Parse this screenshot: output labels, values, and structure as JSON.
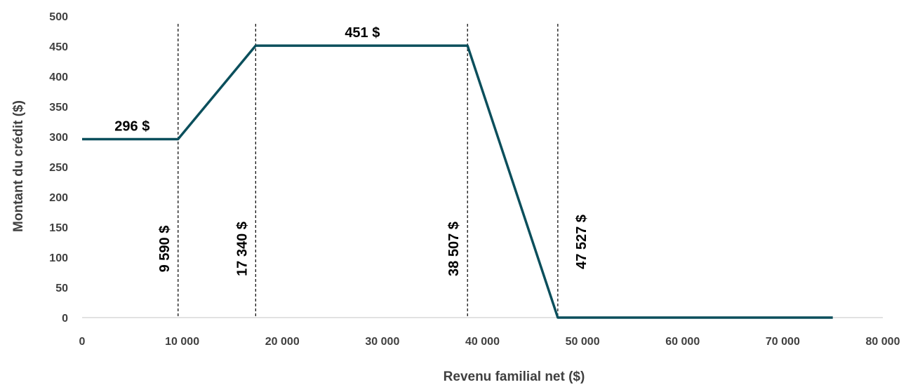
{
  "chart_data": {
    "type": "line",
    "xlabel": "Revenu familial net ($)",
    "ylabel": "Montant du crédit ($)",
    "xlim": [
      0,
      80000
    ],
    "ylim": [
      0,
      500
    ],
    "x_ticks": [
      0,
      10000,
      20000,
      30000,
      40000,
      50000,
      60000,
      70000,
      80000
    ],
    "x_tick_labels": [
      "0",
      "10 000",
      "20 000",
      "30 000",
      "40 000",
      "50 000",
      "60 000",
      "70 000",
      "80 000"
    ],
    "y_ticks": [
      0,
      50,
      100,
      150,
      200,
      250,
      300,
      350,
      400,
      450,
      500
    ],
    "y_tick_labels": [
      "0",
      "50",
      "100",
      "150",
      "200",
      "250",
      "300",
      "350",
      "400",
      "450",
      "500"
    ],
    "grid": false,
    "series": [
      {
        "color": "#0b4f5c",
        "x": [
          0,
          9590,
          17340,
          38507,
          47527,
          75000
        ],
        "y": [
          296,
          296,
          451,
          451,
          0,
          0
        ]
      }
    ],
    "vlines": [
      {
        "x": 9590,
        "label": "9 590 $"
      },
      {
        "x": 17340,
        "label": "17 340 $"
      },
      {
        "x": 38507,
        "label": "38 507 $"
      },
      {
        "x": 47527,
        "label": "47 527 $"
      }
    ],
    "value_labels": [
      {
        "x": 5000,
        "y": 296,
        "label": "296 $"
      },
      {
        "x": 28000,
        "y": 451,
        "label": "451 $"
      }
    ],
    "axis_color": "#d9d9d9",
    "tick_color": "#404040"
  }
}
